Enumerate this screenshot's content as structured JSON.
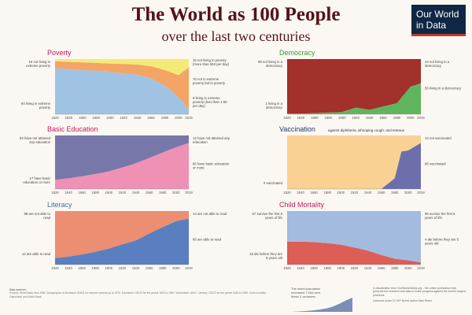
{
  "title": "The World as 100 People",
  "subtitle": "over the last two centuries",
  "logo": {
    "line1": "Our World",
    "line2": "in Data",
    "colors": {
      "bg": "#0f2744",
      "accent": "#c0392b"
    }
  },
  "colors": {
    "title": "#55121a",
    "background": "#fbf8f3"
  },
  "chart_data": [
    {
      "id": "poverty",
      "type": "area",
      "title": "Poverty",
      "title_color": "#c2185b",
      "x": [
        1820,
        1840,
        1860,
        1880,
        1900,
        1920,
        1940,
        1960,
        1980,
        2000,
        2015
      ],
      "series": [
        {
          "label": "in extreme poverty",
          "color": "#a0c3e4",
          "values": [
            84,
            82,
            80,
            79,
            77,
            74,
            72,
            65,
            52,
            31,
            9
          ]
        },
        {
          "label": "not in extreme poverty but in poverty",
          "color": "#f4a464",
          "values": [
            12,
            13,
            14,
            14,
            15,
            17,
            18,
            22,
            28,
            40,
            76
          ]
        },
        {
          "label": "not living in poverty",
          "color": "#f4ea78",
          "values": [
            4,
            5,
            6,
            7,
            8,
            9,
            10,
            13,
            20,
            29,
            15
          ]
        }
      ],
      "left_labels": [
        "16 not living in extreme poverty",
        "84 living in extreme poverty"
      ],
      "right_labels": [
        "15 not living in poverty (more than $10 per day)",
        "76 not in extreme poverty but in poverty",
        "9 living in extreme poverty (less than 1.90 per day)"
      ],
      "xticks": [
        "1820",
        "1840",
        "1860",
        "1880",
        "1900",
        "1920",
        "1940",
        "1960",
        "1980",
        "2000",
        "2015"
      ]
    },
    {
      "id": "democracy",
      "type": "area",
      "title": "Democracy",
      "title_color": "#3a9a3f",
      "x": [
        1820,
        1840,
        1860,
        1880,
        1900,
        1920,
        1940,
        1960,
        1980,
        2000,
        2015
      ],
      "series": [
        {
          "label": "living in a democracy",
          "color": "#5fb55d",
          "values": [
            1,
            1,
            2,
            3,
            4,
            12,
            8,
            14,
            20,
            50,
            56
          ]
        },
        {
          "label": "not living in a democracy",
          "color": "#a2302b",
          "values": [
            99,
            99,
            98,
            97,
            96,
            88,
            92,
            86,
            80,
            50,
            44
          ]
        }
      ],
      "left_labels": [
        "99 not living in a democracy",
        "1 living in a democracy"
      ],
      "right_labels": [
        "44 not living in a democracy",
        "56 living in a democracy"
      ],
      "xticks": [
        "1820",
        "1840",
        "1860",
        "1880",
        "1900",
        "1920",
        "1940",
        "1960",
        "1980",
        "2000",
        "2015"
      ]
    },
    {
      "id": "education",
      "type": "area",
      "title": "Basic Education",
      "title_color": "#c2185b",
      "x": [
        1820,
        1840,
        1860,
        1880,
        1900,
        1920,
        1940,
        1960,
        1980,
        2000,
        2019
      ],
      "series": [
        {
          "label": "with basic education",
          "color": "#ee91b5",
          "values": [
            17,
            20,
            24,
            28,
            33,
            40,
            48,
            58,
            68,
            78,
            86
          ]
        },
        {
          "label": "have not attained any education",
          "color": "#7877a9",
          "values": [
            83,
            80,
            76,
            72,
            67,
            60,
            52,
            42,
            32,
            22,
            14
          ]
        }
      ],
      "left_labels": [
        "83 have not attained any education",
        "17 have basic education or more"
      ],
      "right_labels": [
        "14 have not attained any education",
        "86 have basic education or more"
      ],
      "xticks": [
        "1820",
        "1840",
        "1860",
        "1880",
        "1900",
        "1920",
        "1940",
        "1960",
        "1980",
        "2000",
        "2019"
      ]
    },
    {
      "id": "vaccination",
      "type": "area",
      "title": "Vaccination",
      "subtitle": "against diphtheria, whooping cough, and tetanus",
      "title_color": "#1f3c66",
      "x": [
        1820,
        1840,
        1860,
        1880,
        1900,
        1920,
        1940,
        1960,
        1980,
        1990,
        2000,
        2019
      ],
      "series": [
        {
          "label": "vaccinated",
          "color": "#6d6fac",
          "values": [
            0,
            0,
            0,
            0,
            0,
            0,
            0,
            0,
            20,
            70,
            72,
            86
          ]
        },
        {
          "label": "not vaccinated",
          "color": "#f8d193",
          "values": [
            100,
            100,
            100,
            100,
            100,
            100,
            100,
            100,
            80,
            30,
            28,
            14
          ]
        }
      ],
      "left_labels": [
        "0 vaccinated"
      ],
      "right_labels": [
        "14 not vaccinated",
        "86 vaccinated"
      ],
      "xticks": [
        "1820",
        "1840",
        "1860",
        "1880",
        "1900",
        "1920",
        "1940",
        "1960",
        "1980",
        "2000",
        "2019"
      ]
    },
    {
      "id": "literacy",
      "type": "area",
      "title": "Literacy",
      "title_color": "#3c6ca8",
      "x": [
        1820,
        1840,
        1860,
        1880,
        1900,
        1920,
        1940,
        1960,
        1980,
        2000,
        2019
      ],
      "series": [
        {
          "label": "able to read",
          "color": "#5a7fc0",
          "values": [
            12,
            15,
            19,
            24,
            30,
            38,
            45,
            58,
            70,
            81,
            86
          ]
        },
        {
          "label": "not able to read",
          "color": "#ec8e72",
          "values": [
            88,
            85,
            81,
            76,
            70,
            62,
            55,
            42,
            30,
            19,
            14
          ]
        }
      ],
      "left_labels": [
        "88 are not able to read",
        "12 are able to read"
      ],
      "right_labels": [
        "14 are not able to read",
        "86 are able to read"
      ],
      "xticks": [
        "1820",
        "1840",
        "1860",
        "1880",
        "1900",
        "1920",
        "1940",
        "1960",
        "1980",
        "2000",
        "2019"
      ]
    },
    {
      "id": "child-mortality",
      "type": "area",
      "title": "Child Mortality",
      "title_color": "#c2185b",
      "x": [
        1820,
        1840,
        1860,
        1880,
        1900,
        1920,
        1940,
        1960,
        1980,
        2000,
        2019
      ],
      "series": [
        {
          "label": "die before 5 years old",
          "color": "#dd5d57",
          "values": [
            43,
            43,
            42,
            40,
            37,
            32,
            26,
            18,
            11,
            8,
            4
          ]
        },
        {
          "label": "survive the first 5 years of life",
          "color": "#a2bbde",
          "values": [
            57,
            57,
            58,
            60,
            63,
            68,
            74,
            82,
            89,
            92,
            96
          ]
        }
      ],
      "left_labels": [
        "57 survive the first 5 years of life",
        "43 die before they are 5 years old"
      ],
      "right_labels": [
        "96 survive the first 5 years of life",
        "4 die before they are 5 years old"
      ],
      "xticks": [
        "1820",
        "1840",
        "1860",
        "1880",
        "1900",
        "1920",
        "1940",
        "1960",
        "1980",
        "2000",
        "2019"
      ]
    }
  ],
  "footer": {
    "sources_label": "Data sources:",
    "sources_text": "Poverty: World Bank from 1981, Bourguignon & Morrisson (2002) for extreme poverty up to 1970. Education: OECD for the period 1820 to 1960. Vaccination: WHO. Literacy: OECD for the period 1820 to 1990. Child mortality: Gapminder and World Bank.",
    "mini_caption": "The world population increased 7-fold over these 2 centuries.",
    "credit": "A visualization from OurWorldinData.org – the online publication that presents the research and data to make progress against the world's largest problems.",
    "license": "Licensed under CC-BY by the author Max Roser."
  }
}
